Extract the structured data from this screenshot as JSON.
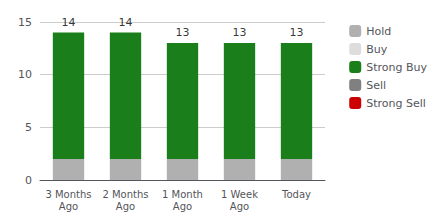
{
  "chart_data": {
    "type": "bar",
    "stacked": true,
    "categories": [
      "3 Months\nAgo",
      "2 Months\nAgo",
      "1 Month\nAgo",
      "1 Week\nAgo",
      "Today"
    ],
    "series": [
      {
        "name": "Hold",
        "color": "#b0b0b0",
        "values": [
          2,
          2,
          2,
          2,
          2
        ]
      },
      {
        "name": "Buy",
        "color": "#dddddd",
        "values": [
          0,
          0,
          0,
          0,
          0
        ]
      },
      {
        "name": "Strong Buy",
        "color": "#1a7f1a",
        "values": [
          12,
          12,
          11,
          11,
          11
        ]
      },
      {
        "name": "Sell",
        "color": "#808080",
        "values": [
          0,
          0,
          0,
          0,
          0
        ]
      },
      {
        "name": "Strong Sell",
        "color": "#cc0000",
        "values": [
          0,
          0,
          0,
          0,
          0
        ]
      }
    ],
    "totals": [
      14,
      14,
      13,
      13,
      13
    ],
    "ylim": [
      0,
      15
    ],
    "yticks": [
      0,
      5,
      10,
      15
    ],
    "grid": true,
    "legend": "right"
  }
}
